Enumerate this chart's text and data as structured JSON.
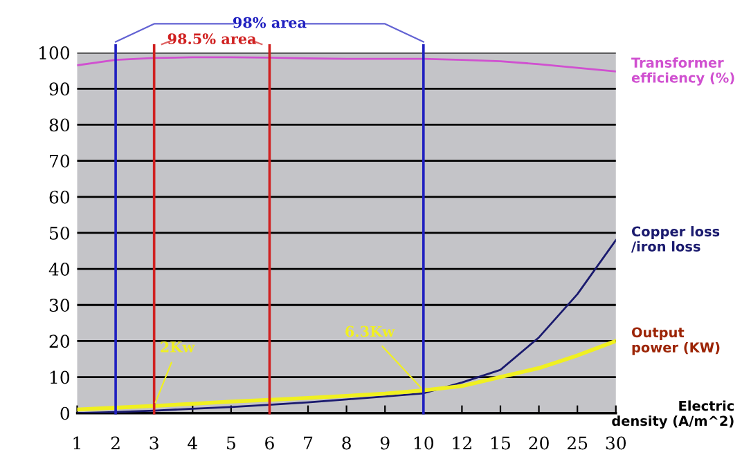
{
  "chart_data": {
    "type": "line",
    "categories": [
      "1",
      "2",
      "3",
      "4",
      "5",
      "6",
      "7",
      "8",
      "9",
      "10",
      "12",
      "15",
      "20",
      "25",
      "30"
    ],
    "xlabel": "Electric density (A/m^2)",
    "ylim": [
      0,
      100
    ],
    "yticks": [
      0,
      10,
      20,
      30,
      40,
      50,
      60,
      70,
      80,
      90,
      100
    ],
    "grid": "y",
    "legend": false,
    "series": [
      {
        "name": "Transformer efficiency (%)",
        "color": "#d050d0",
        "values": [
          96.5,
          98,
          98.5,
          98.7,
          98.7,
          98.6,
          98.4,
          98.3,
          98.3,
          98.3,
          98,
          97.6,
          96.8,
          95.8,
          94.8
        ]
      },
      {
        "name": "Copper loss /iron loss",
        "color": "#1a1a6e",
        "values": [
          0,
          0.3,
          0.7,
          1.2,
          1.7,
          2.3,
          3,
          3.8,
          4.6,
          5.5,
          8.5,
          12,
          21,
          33,
          48
        ]
      },
      {
        "name": "Output power (KW)",
        "color": "#f0f020",
        "values": [
          1,
          1.5,
          2,
          2.6,
          3.2,
          3.7,
          4.2,
          4.8,
          5.4,
          6.3,
          7.5,
          10,
          12.5,
          16,
          20
        ]
      }
    ],
    "ref_lines": [
      {
        "axis": "x",
        "value": "2",
        "color": "#2020c0"
      },
      {
        "axis": "x",
        "value": "3",
        "color": "#d02020"
      },
      {
        "axis": "x",
        "value": "6",
        "color": "#d02020"
      },
      {
        "axis": "x",
        "value": "10",
        "color": "#2020c0"
      }
    ],
    "annotations": [
      "98% area",
      "98.5% area",
      {
        "text": "2Kw",
        "x": "3",
        "y": 2
      },
      {
        "text": "6.3Kw",
        "x": "10",
        "y": 6.3
      }
    ]
  }
}
